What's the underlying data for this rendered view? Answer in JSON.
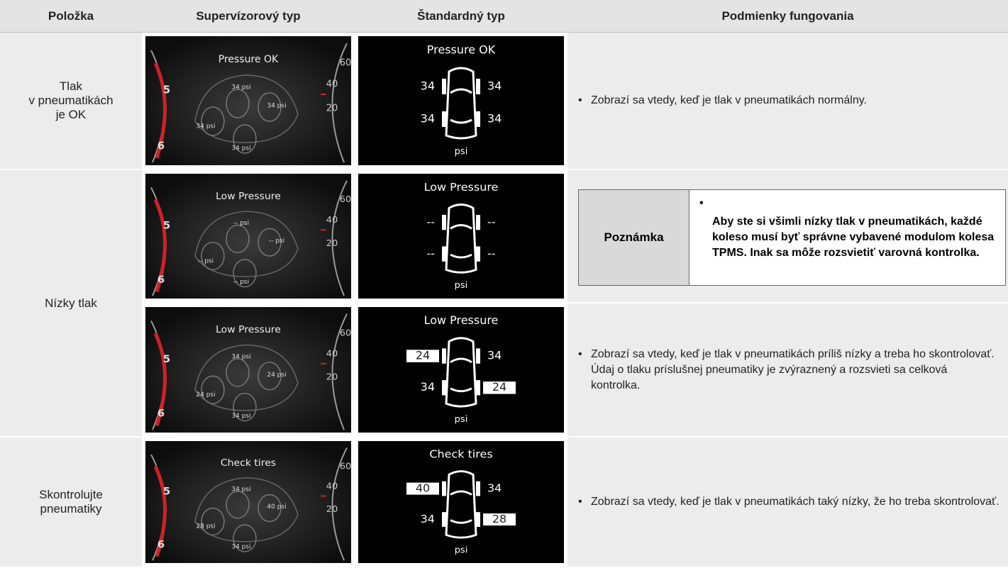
{
  "header": [
    "Položka",
    "Supervízorový typ",
    "Štandardný typ",
    "Podmienky fungovania"
  ],
  "gauge": {
    "left": [
      "5",
      "6"
    ],
    "right": [
      "60",
      "40",
      "20"
    ]
  },
  "items": [
    {
      "label": "Tlak\nv pneumatikách\nje OK",
      "cases": [
        {
          "supervisor": {
            "title": "Pressure OK",
            "tires": [
              "34 psi",
              "34 psi",
              "34 psi",
              "34 psi"
            ]
          },
          "standard": {
            "title": "Pressure OK",
            "tires": [
              "34",
              "34",
              "34",
              "34"
            ],
            "highlighted": [],
            "unit": "psi"
          },
          "condition": "Zobrazí sa vtedy, keď je tlak v pneumatikách normálny."
        }
      ]
    },
    {
      "label": "Nízky tlak",
      "cases": [
        {
          "supervisor": {
            "title": "Low Pressure",
            "tires": [
              "-- psi",
              "-- psi",
              "-- psi",
              "-- psi"
            ]
          },
          "standard": {
            "title": "Low Pressure",
            "tires": [
              "--",
              "--",
              "--",
              "--"
            ],
            "highlighted": [],
            "unit": "psi"
          },
          "note": {
            "label": "Poznámka",
            "text": "Aby ste si všimli nízky tlak v pneumatikách, každé koleso musí byť správne vybavené modulom kolesa TPMS. Inak sa môže rozsvietiť varovná kontrolka."
          }
        },
        {
          "supervisor": {
            "title": "Low Pressure",
            "tires": [
              "34 psi",
              "24 psi",
              "24 psi",
              "34 psi"
            ]
          },
          "standard": {
            "title": "Low Pressure",
            "tires": [
              "24",
              "34",
              "34",
              "24"
            ],
            "highlighted": [
              0,
              3
            ],
            "unit": "psi"
          },
          "condition": "Zobrazí sa vtedy, keď je tlak v pneumatikách príliš nízky a treba ho skontrolovať. Údaj o tlaku príslušnej pneumatiky je zvýraznený a rozsvieti sa celková kontrolka."
        }
      ]
    },
    {
      "label": "Skontrolujte\npneumatiky",
      "cases": [
        {
          "supervisor": {
            "title": "Check tires",
            "tires": [
              "34 psi",
              "40 psi",
              "28 psi",
              "34 psi"
            ]
          },
          "standard": {
            "title": "Check tires",
            "tires": [
              "40",
              "34",
              "34",
              "28"
            ],
            "highlighted": [
              0,
              3
            ],
            "unit": "psi"
          },
          "condition": "Zobrazí sa vtedy, keď je tlak v pneumatikách taký nízky, že ho treba skontrolovať."
        }
      ]
    }
  ]
}
